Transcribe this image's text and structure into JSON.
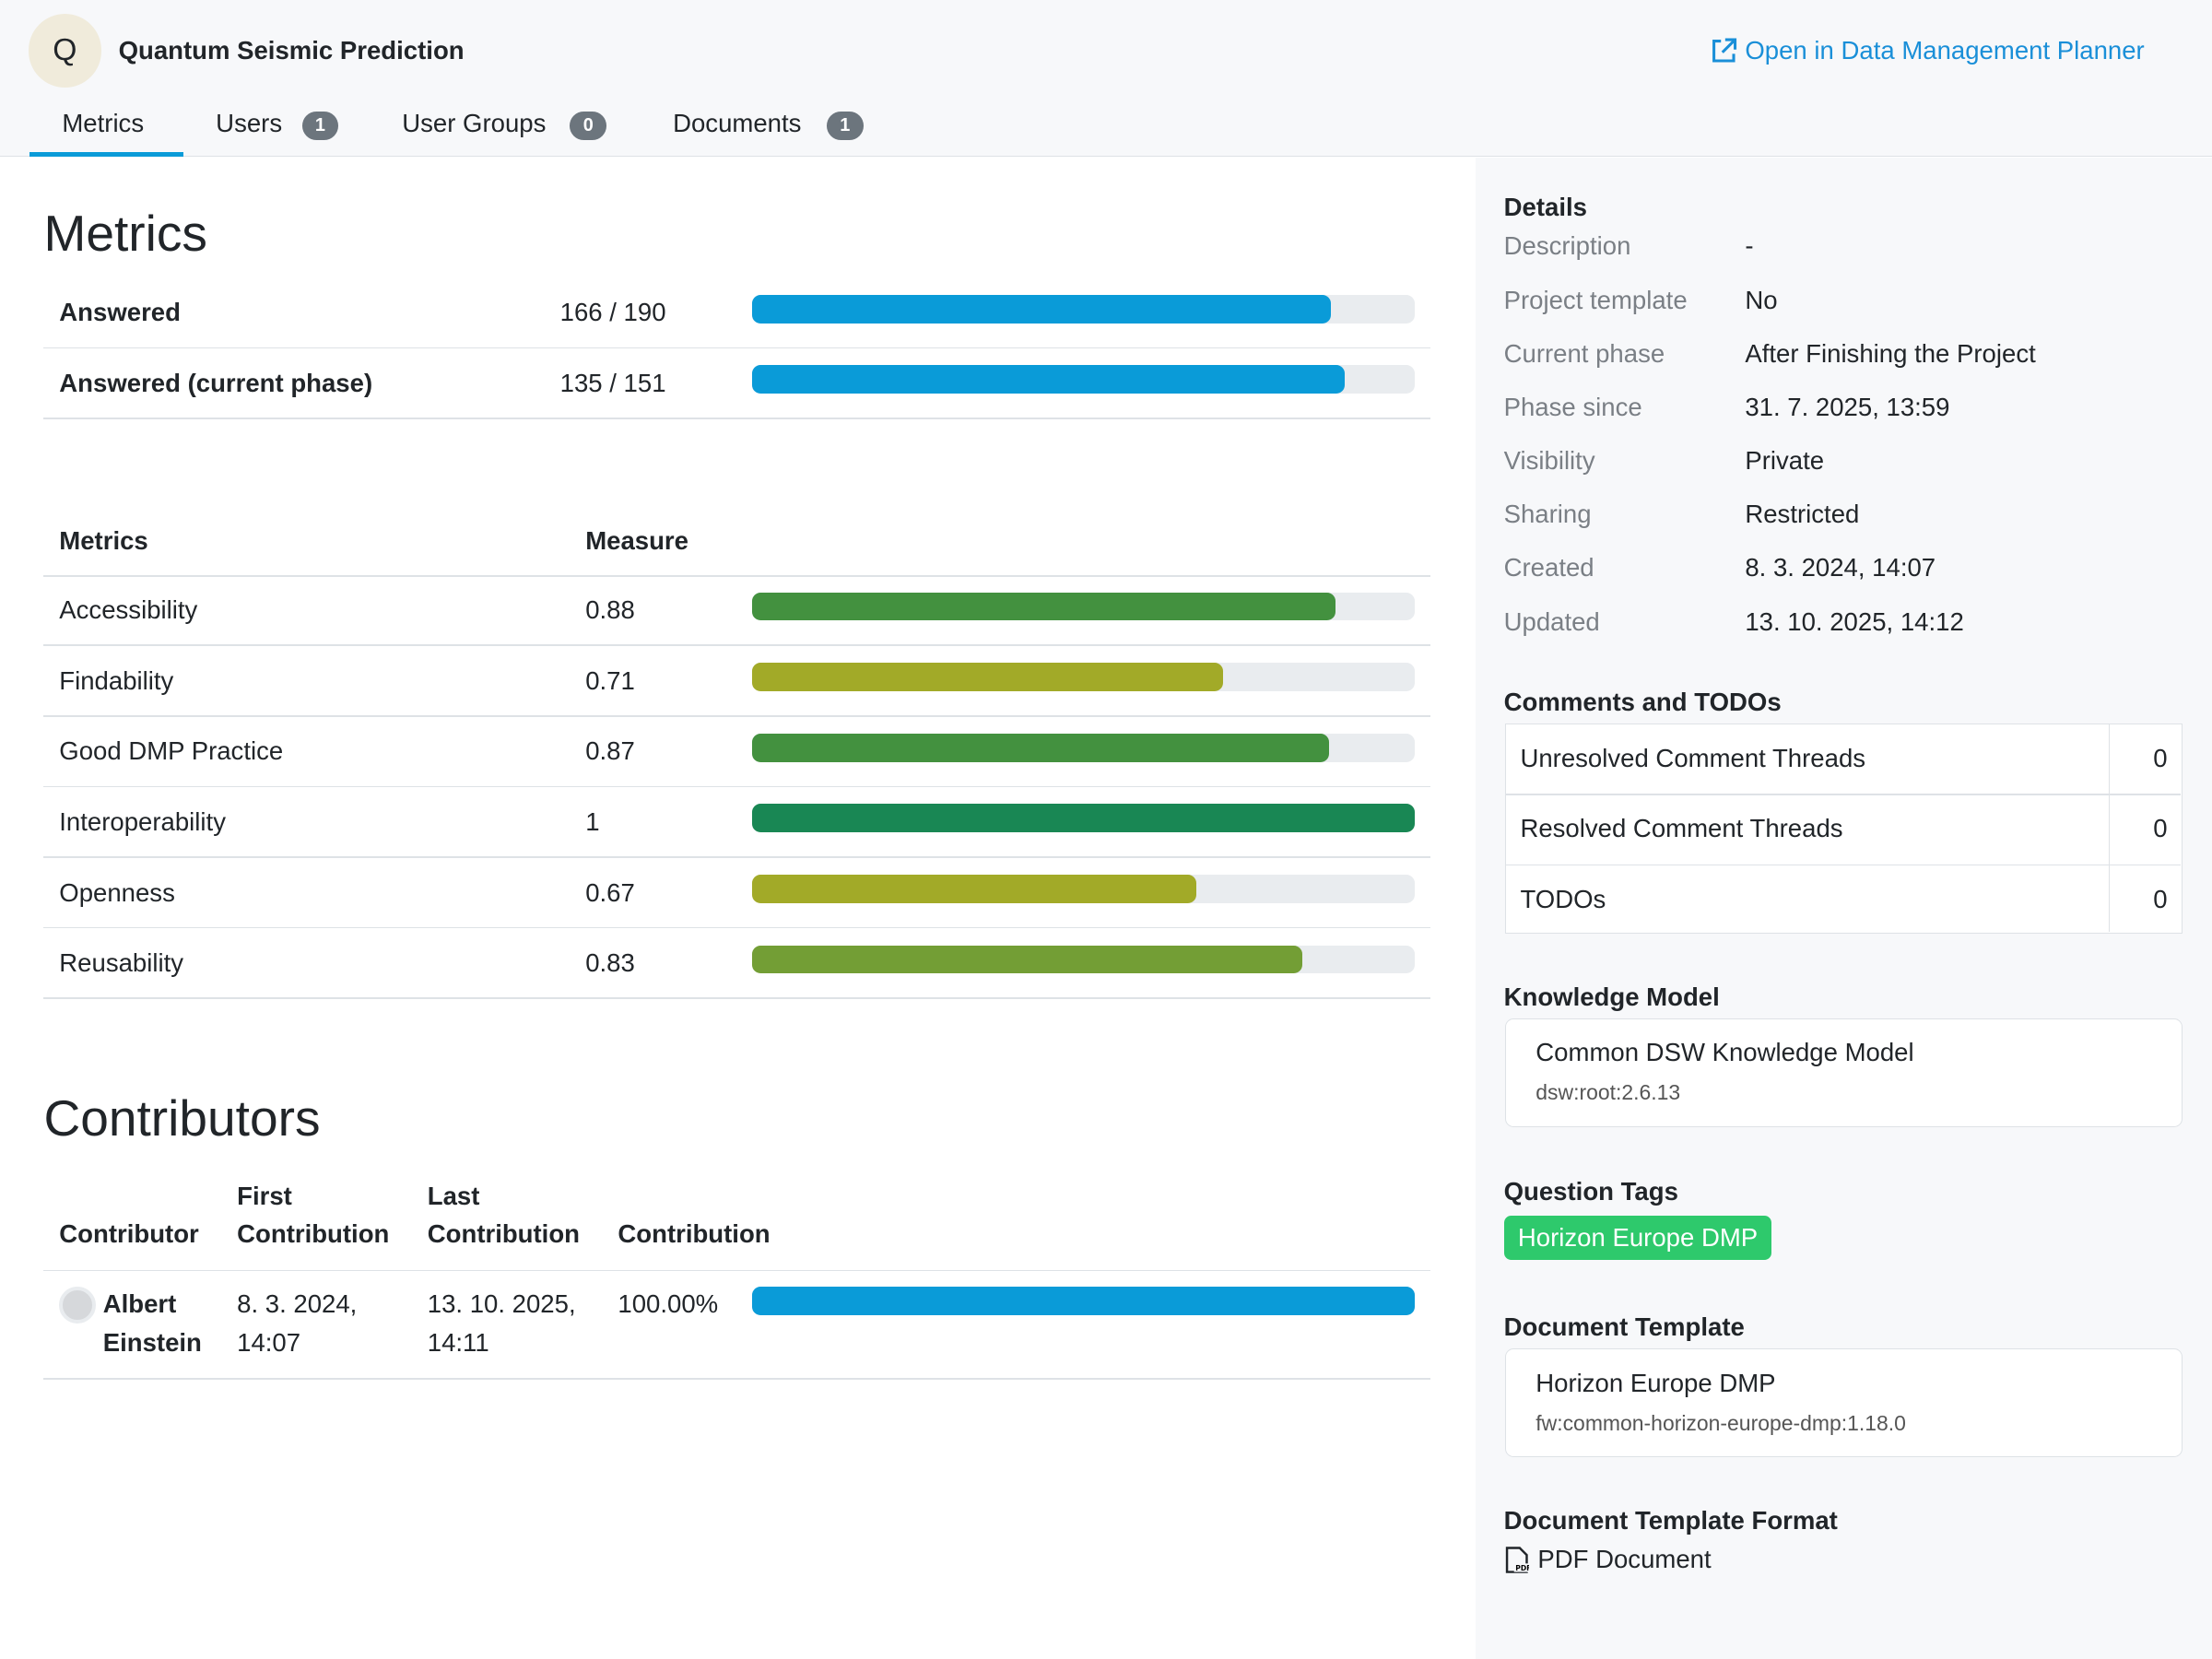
{
  "header": {
    "avatar": "Q",
    "title": "Quantum Seismic Prediction",
    "link": "Open in Data Management Planner"
  },
  "tabs": [
    {
      "label": "Metrics"
    },
    {
      "label": "Users",
      "count": 1
    },
    {
      "label": "User Groups",
      "count": 0
    },
    {
      "label": "Documents",
      "count": 1
    }
  ],
  "metrics": {
    "title": "Metrics",
    "progress": [
      {
        "label": "Answered",
        "value_label": "166 / 190",
        "answered": 166,
        "total": 190,
        "color": "#0a9bd8"
      },
      {
        "label": "Answered (current phase)",
        "value_label": "135 / 151",
        "answered": 135,
        "total": 151,
        "color": "#0a9bd8"
      }
    ],
    "table": {
      "headers": [
        "Metrics",
        "Measure"
      ],
      "rows": [
        {
          "name": "Accessibility",
          "value": 0.88,
          "color": "#43913f"
        },
        {
          "name": "Findability",
          "value": 0.71,
          "color": "#a2aa28"
        },
        {
          "name": "Good DMP Practice",
          "value": 0.87,
          "color": "#43913f"
        },
        {
          "name": "Interoperability",
          "value": 1,
          "color": "#198754"
        },
        {
          "name": "Openness",
          "value": 0.67,
          "color": "#a2aa28"
        },
        {
          "name": "Reusability",
          "value": 0.83,
          "color": "#739e35"
        }
      ]
    }
  },
  "contributors": {
    "title": "Contributors",
    "headers": [
      "Contributor",
      "First Contribution",
      "Last Contribution",
      "Contribution"
    ],
    "rows": [
      {
        "name": "Albert Einstein",
        "first": "8. 3. 2024, 14:07",
        "last": "13. 10. 2025, 14:11",
        "value": 100,
        "value_label": "100.00%",
        "color": "#0a9bd8"
      }
    ]
  },
  "details": {
    "title": "Details",
    "rows": [
      [
        "Description",
        "-"
      ],
      [
        "Project template",
        "No"
      ],
      [
        "Current phase",
        "After Finishing the Project"
      ],
      [
        "Phase since",
        "31. 7. 2025, 13:59"
      ],
      [
        "Visibility",
        "Private"
      ],
      [
        "Sharing",
        "Restricted"
      ],
      [
        "Created",
        "8. 3. 2024, 14:07"
      ],
      [
        "Updated",
        "13. 10. 2025, 14:12"
      ]
    ]
  },
  "comments": {
    "title": "Comments and TODOs",
    "rows": [
      {
        "label": "Unresolved Comment Threads",
        "count": 0
      },
      {
        "label": "Resolved Comment Threads",
        "count": 0
      },
      {
        "label": "TODOs",
        "count": 0
      }
    ]
  },
  "knowledge_model": {
    "title": "Knowledge Model",
    "name": "Common DSW Knowledge Model",
    "id": "dsw:root:2.6.13"
  },
  "question_tags": {
    "title": "Question Tags",
    "tags": [
      "Horizon Europe DMP"
    ]
  },
  "document_template": {
    "title": "Document Template",
    "name": "Horizon Europe DMP",
    "id": "fw:common-horizon-europe-dmp:1.18.0"
  },
  "format": {
    "title": "Document Template Format",
    "name": "PDF Document"
  }
}
